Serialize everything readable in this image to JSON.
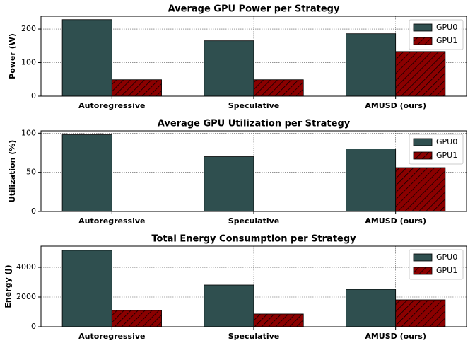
{
  "chart_data": [
    {
      "type": "bar",
      "title": "Average GPU Power per Strategy",
      "ylabel": "Power (W)",
      "categories": [
        "Autoregressive",
        "Speculative",
        "AMUSD (ours)"
      ],
      "series": [
        {
          "name": "GPU0",
          "color": "#2f4f4f",
          "values": [
            228,
            165,
            186
          ]
        },
        {
          "name": "GPU1",
          "color": "#8b0000",
          "hatch": "//",
          "values": [
            49,
            49,
            133
          ]
        }
      ],
      "ylim": [
        0,
        238
      ],
      "yticks": [
        0,
        100,
        200
      ],
      "grid": true,
      "legend": "upper right"
    },
    {
      "type": "bar",
      "title": "Average GPU Utilization per Strategy",
      "ylabel": "Utilization (%)",
      "categories": [
        "Autoregressive",
        "Speculative",
        "AMUSD (ours)"
      ],
      "series": [
        {
          "name": "GPU0",
          "color": "#2f4f4f",
          "values": [
            98,
            70,
            80
          ]
        },
        {
          "name": "GPU1",
          "color": "#8b0000",
          "hatch": "//",
          "values": [
            0,
            0,
            56
          ]
        }
      ],
      "ylim": [
        0,
        103
      ],
      "yticks": [
        0,
        50,
        100
      ],
      "grid": true,
      "legend": "upper right"
    },
    {
      "type": "bar",
      "title": "Total Energy Consumption per Strategy",
      "ylabel": "Energy (J)",
      "categories": [
        "Autoregressive",
        "Speculative",
        "AMUSD (ours)"
      ],
      "series": [
        {
          "name": "GPU0",
          "color": "#2f4f4f",
          "values": [
            5150,
            2810,
            2520
          ]
        },
        {
          "name": "GPU1",
          "color": "#8b0000",
          "hatch": "//",
          "values": [
            1100,
            860,
            1810
          ]
        }
      ],
      "ylim": [
        0,
        5430
      ],
      "yticks": [
        0,
        2000,
        4000
      ],
      "grid": true,
      "legend": "upper right"
    }
  ]
}
